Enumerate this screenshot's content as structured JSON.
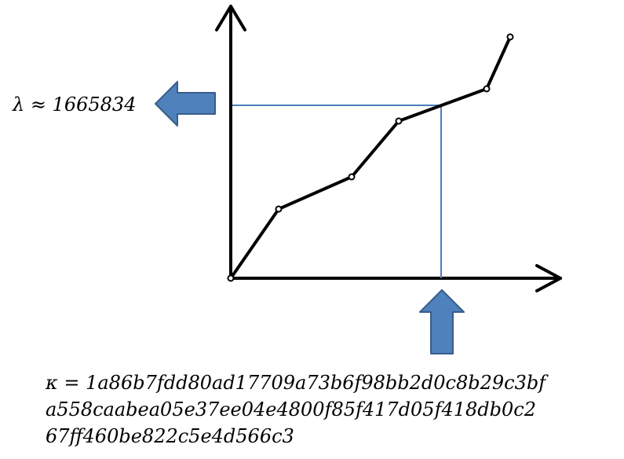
{
  "lambda_label": "λ ≈ 1665834",
  "kappa_lines": [
    "κ = 1a86b7fdd80ad17709a73b6f98bb2d0c8b29c3bf",
    "a558caabea05e37ee04e4800f85f417d05f418db0c2",
    "67ff460be822c5e4d566c3"
  ],
  "colors": {
    "curve": "#000000",
    "guide_line": "#4a7ebb",
    "arrow_fill": "#4f81bd",
    "arrow_stroke": "#385d8a",
    "axis": "#000000"
  },
  "icons": {
    "left_arrow": "arrow-left-icon",
    "up_arrow": "arrow-up-icon"
  }
}
